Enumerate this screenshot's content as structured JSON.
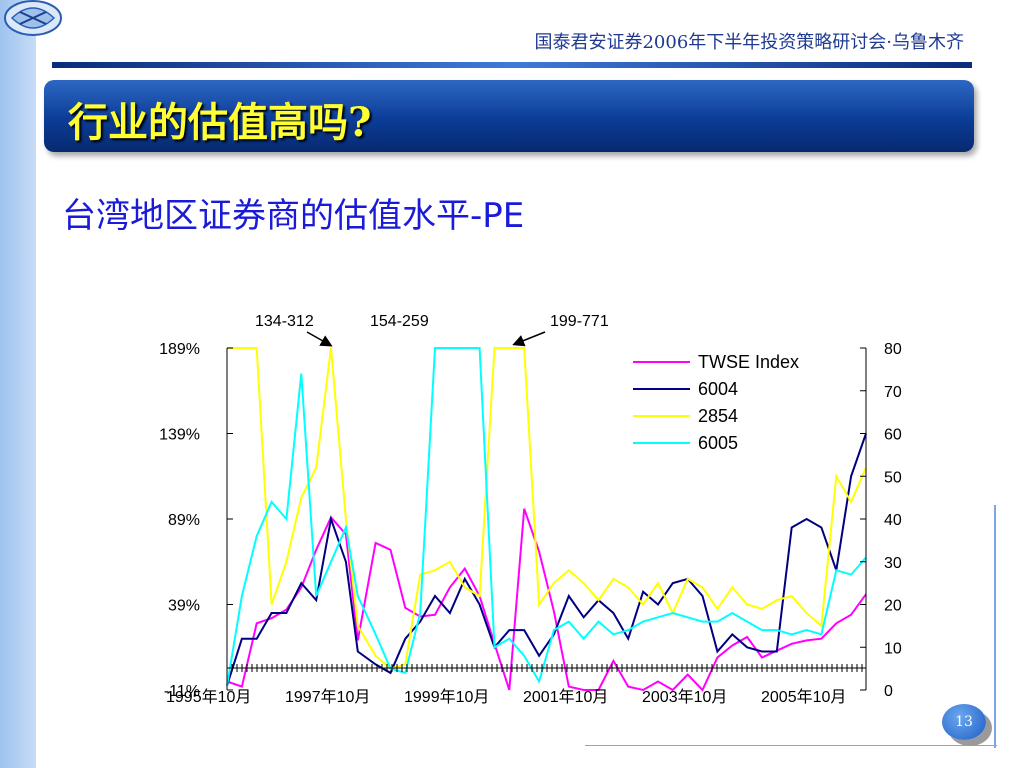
{
  "header": {
    "conference": "国泰君安证券2006年下半年投资策略研讨会·乌鲁木齐",
    "title": "行业的估值高吗?",
    "subtitle": "台湾地区证券商的估值水平-PE"
  },
  "page_number": "13",
  "colors": {
    "TWSE Index": "#ff00ff",
    "6004": "#000080",
    "2854": "#ffff00",
    "6005": "#00ffff",
    "accent": "#0b3c97",
    "title_text": "#ffff33"
  },
  "chart_data": {
    "type": "line",
    "title": "",
    "xlabel": "",
    "ylabel": "",
    "x_ticks": [
      "1995年10月",
      "1997年10月",
      "1999年10月",
      "2001年10月",
      "2003年10月",
      "2005年10月"
    ],
    "x_range": [
      1995.75,
      2006.5
    ],
    "left_axis": {
      "ticks": [
        "-11%",
        "39%",
        "89%",
        "139%",
        "189%"
      ],
      "range": [
        -11,
        189
      ]
    },
    "right_axis": {
      "ticks": [
        "0",
        "10",
        "20",
        "30",
        "40",
        "50",
        "60",
        "70",
        "80"
      ],
      "range": [
        0,
        80
      ]
    },
    "grid": false,
    "legend_position": "top-right",
    "legend": [
      "TWSE Index",
      "6004",
      "2854",
      "6005"
    ],
    "annotations": [
      {
        "text": "134-312",
        "x": 1997.5,
        "y": 80
      },
      {
        "text": "154-259",
        "x": 1999.75,
        "y": 80
      },
      {
        "text": "199-771",
        "x": 2000.25,
        "y": 80
      }
    ],
    "series": [
      {
        "name": "TWSE Index",
        "axis": "left",
        "x": [
          1995.75,
          1996.0,
          1996.25,
          1996.5,
          1996.75,
          1997.0,
          1997.25,
          1997.5,
          1997.75,
          1997.95,
          1998.25,
          1998.5,
          1998.75,
          1999.0,
          1999.25,
          1999.5,
          1999.75,
          2000.0,
          2000.25,
          2000.5,
          2000.75,
          2001.0,
          2001.25,
          2001.5,
          2001.75,
          2002.0,
          2002.25,
          2002.5,
          2002.75,
          2003.0,
          2003.25,
          2003.5,
          2003.75,
          2004.0,
          2004.25,
          2004.5,
          2004.75,
          2005.0,
          2005.25,
          2005.5,
          2005.75,
          2006.0,
          2006.25,
          2006.5
        ],
        "values": [
          -6,
          -9,
          28,
          31,
          36,
          49,
          71,
          90,
          80,
          18,
          75,
          71,
          37,
          32,
          33,
          49,
          60,
          44,
          16,
          -11,
          95,
          70,
          35,
          -9,
          -15,
          -11,
          6,
          -9,
          -12,
          -6,
          -23,
          -2,
          -16,
          8,
          15,
          20,
          8,
          12,
          16,
          18,
          19,
          28,
          33,
          45
        ]
      },
      {
        "name": "6004",
        "axis": "right",
        "x": [
          1995.75,
          1996.0,
          1996.25,
          1996.5,
          1996.75,
          1997.0,
          1997.25,
          1997.5,
          1997.75,
          1997.95,
          1998.25,
          1998.5,
          1998.75,
          1999.0,
          1999.25,
          1999.5,
          1999.75,
          2000.0,
          2000.25,
          2000.5,
          2000.75,
          2001.0,
          2001.25,
          2001.5,
          2001.75,
          2002.0,
          2002.25,
          2002.5,
          2002.75,
          2003.0,
          2003.25,
          2003.5,
          2003.75,
          2004.0,
          2004.25,
          2004.5,
          2004.75,
          2005.0,
          2005.25,
          2005.5,
          2005.75,
          2006.0,
          2006.25,
          2006.5
        ],
        "values": [
          1,
          12,
          12,
          18,
          18,
          25,
          21,
          40,
          30,
          9,
          6,
          4,
          12,
          16,
          22,
          18,
          26,
          20,
          10,
          14,
          14,
          8,
          13,
          22,
          17,
          21,
          18,
          12,
          23,
          20,
          25,
          26,
          22,
          9,
          13,
          10,
          9,
          9,
          38,
          40,
          38,
          28,
          50,
          60
        ]
      },
      {
        "name": "2854",
        "axis": "right",
        "x": [
          1995.75,
          1996.0,
          1996.25,
          1996.5,
          1996.75,
          1997.0,
          1997.25,
          1997.5,
          1997.75,
          1997.95,
          1998.25,
          1998.5,
          1998.75,
          1999.0,
          1999.25,
          1999.5,
          1999.75,
          2000.0,
          2000.25,
          2000.5,
          2000.75,
          2001.0,
          2001.25,
          2001.5,
          2001.75,
          2002.0,
          2002.25,
          2002.5,
          2002.75,
          2003.0,
          2003.25,
          2003.5,
          2003.75,
          2004.0,
          2004.25,
          2004.5,
          2004.75,
          2005.0,
          2005.25,
          2005.5,
          2005.75,
          2006.0,
          2006.25,
          2006.5
        ],
        "values": [
          80,
          80,
          80,
          20,
          30,
          45,
          52,
          80,
          40,
          15,
          8,
          5,
          6,
          27,
          28,
          30,
          24,
          22,
          80,
          80,
          80,
          20,
          25,
          28,
          25,
          21,
          26,
          24,
          20,
          25,
          18,
          26,
          24,
          19,
          24,
          20,
          19,
          21,
          22,
          18,
          15,
          50,
          44,
          52
        ]
      },
      {
        "name": "6005",
        "axis": "right",
        "x": [
          1995.75,
          1996.0,
          1996.25,
          1996.5,
          1996.75,
          1997.0,
          1997.25,
          1997.5,
          1997.75,
          1997.95,
          1998.25,
          1998.5,
          1998.75,
          1999.0,
          1999.25,
          1999.5,
          1999.75,
          2000.0,
          2000.25,
          2000.5,
          2000.75,
          2001.0,
          2001.25,
          2001.5,
          2001.75,
          2002.0,
          2002.25,
          2002.5,
          2002.75,
          2003.0,
          2003.25,
          2003.5,
          2003.75,
          2004.0,
          2004.25,
          2004.5,
          2004.75,
          2005.0,
          2005.25,
          2005.5,
          2005.75,
          2006.0,
          2006.25,
          2006.5
        ],
        "values": [
          1,
          22,
          36,
          44,
          40,
          74,
          22,
          30,
          38,
          22,
          13,
          5,
          4,
          18,
          80,
          80,
          80,
          80,
          10,
          12,
          8,
          2,
          14,
          16,
          12,
          16,
          13,
          14,
          16,
          17,
          18,
          17,
          16,
          16,
          18,
          16,
          14,
          14,
          13,
          14,
          13,
          28,
          27,
          31
        ]
      }
    ]
  }
}
